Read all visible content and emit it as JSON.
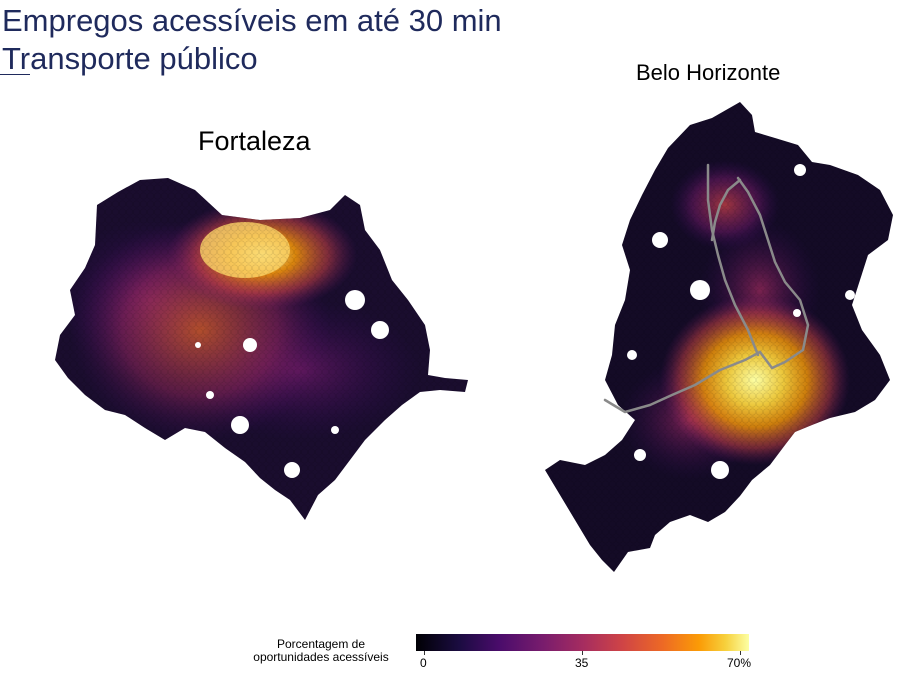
{
  "title": {
    "line1": "Empregos acessíveis em até 30 min",
    "line2": "Transporte público"
  },
  "maps": [
    {
      "name": "Fortaleza",
      "peak_percent": 70
    },
    {
      "name": "Belo Horizonte",
      "peak_percent": 70,
      "rail_lines": true
    }
  ],
  "legend": {
    "title_line1": "Porcentagem de",
    "title_line2": "oportunidades acessíveis",
    "ticks": [
      "0",
      "35",
      "70%"
    ],
    "range": [
      0,
      70
    ],
    "colormap": "inferno"
  },
  "colors": {
    "title": "#1f2a5c",
    "rail": "#8a8a8a",
    "low": "#000004",
    "high": "#fcffa4"
  }
}
